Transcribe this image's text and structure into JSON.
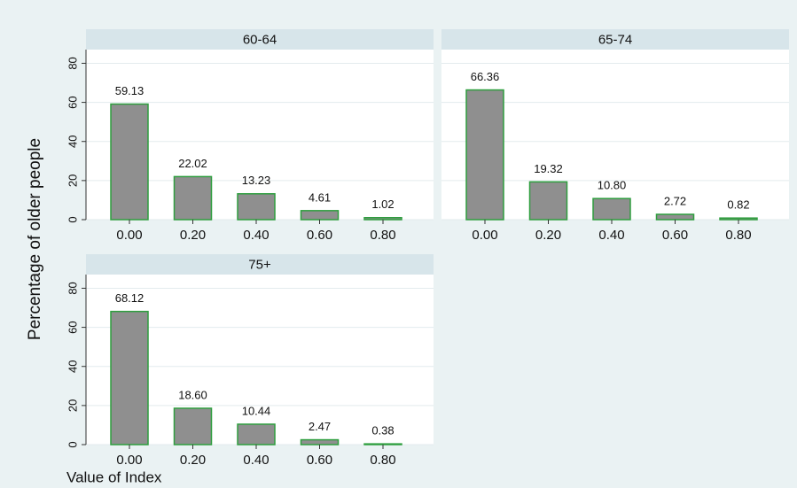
{
  "ylabel": "Percentage of older people",
  "xlabel": "Value of Index",
  "chart_data": [
    {
      "type": "bar",
      "title": "60-64",
      "categories": [
        "0.00",
        "0.20",
        "0.40",
        "0.60",
        "0.80"
      ],
      "values": [
        59.13,
        22.02,
        13.23,
        4.61,
        1.02
      ],
      "value_labels": [
        "59.13",
        "22.02",
        "13.23",
        "4.61",
        "1.02"
      ],
      "color": "#8f8f8f",
      "edgecolor": "#2e9e3e",
      "ylim": [
        0,
        87
      ],
      "yticks": [
        0,
        20,
        40,
        60,
        80
      ],
      "grid": true,
      "yaxis": true
    },
    {
      "type": "bar",
      "title": "65-74",
      "categories": [
        "0.00",
        "0.20",
        "0.40",
        "0.60",
        "0.80"
      ],
      "values": [
        66.36,
        19.32,
        10.8,
        2.72,
        0.82
      ],
      "value_labels": [
        "66.36",
        "19.32",
        "10.80",
        "2.72",
        "0.82"
      ],
      "color": "#8f8f8f",
      "edgecolor": "#2e9e3e",
      "ylim": [
        0,
        87
      ],
      "yticks": [
        0,
        20,
        40,
        60,
        80
      ],
      "grid": true,
      "yaxis": false
    },
    {
      "type": "bar",
      "title": "75+",
      "categories": [
        "0.00",
        "0.20",
        "0.40",
        "0.60",
        "0.80"
      ],
      "values": [
        68.12,
        18.6,
        10.44,
        2.47,
        0.38
      ],
      "value_labels": [
        "68.12",
        "18.60",
        "10.44",
        "2.47",
        "0.38"
      ],
      "color": "#8f8f8f",
      "edgecolor": "#2e9e3e",
      "ylim": [
        0,
        87
      ],
      "yticks": [
        0,
        20,
        40,
        60,
        80
      ],
      "grid": true,
      "yaxis": true
    }
  ]
}
